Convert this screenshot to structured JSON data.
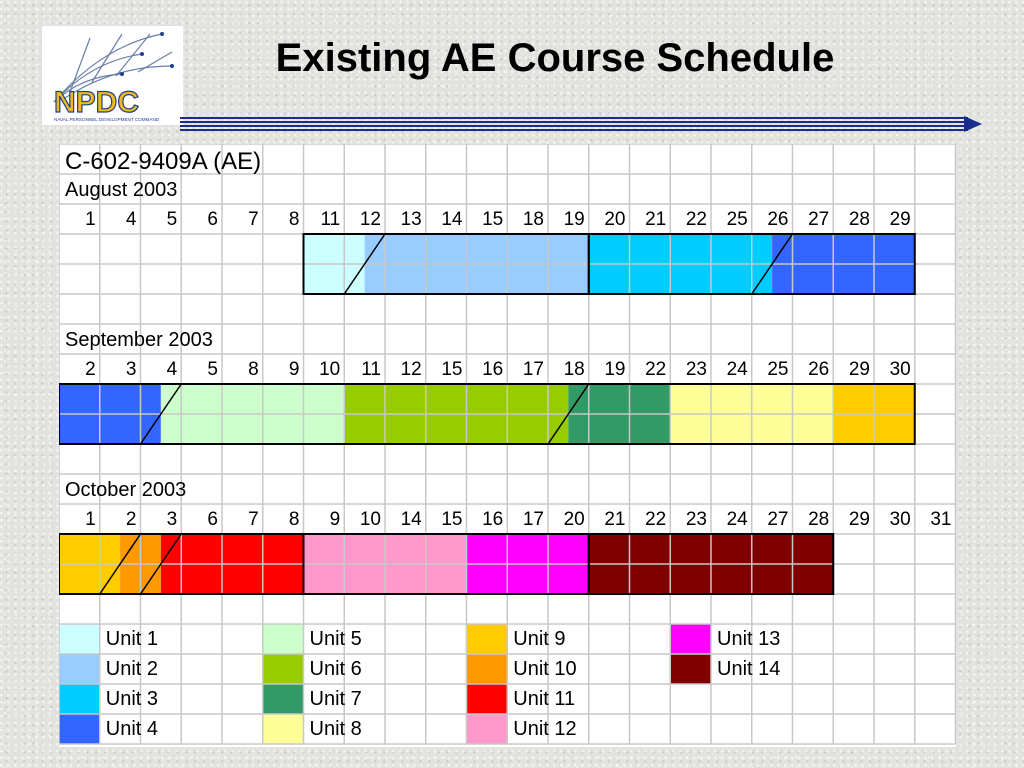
{
  "slide": {
    "title": "Existing AE Course Schedule"
  },
  "logo": {
    "text": "NPDC",
    "subtitle": "NAVAL PERSONNEL DEVELOPMENT COMMAND"
  },
  "schedule": {
    "course_code": "C-602-9409A (AE)",
    "months": [
      {
        "name": "August 2003",
        "days": [
          "1",
          "4",
          "5",
          "6",
          "7",
          "8",
          "11",
          "12",
          "13",
          "14",
          "15",
          "18",
          "19",
          "20",
          "21",
          "22",
          "25",
          "26",
          "27",
          "28",
          "29"
        ],
        "segments": [
          {
            "unit": "Unit 1",
            "start": 6,
            "end": 7.5
          },
          {
            "unit": "Unit 2",
            "start": 7.5,
            "end": 13
          },
          {
            "unit": "Unit 3",
            "start": 13,
            "end": 17.5
          },
          {
            "unit": "Unit 4",
            "start": 17.5,
            "end": 21
          }
        ],
        "boxes": [
          [
            6,
            13
          ],
          [
            13,
            21
          ]
        ]
      },
      {
        "name": "September 2003",
        "days": [
          "2",
          "3",
          "4",
          "5",
          "8",
          "9",
          "10",
          "11",
          "12",
          "15",
          "16",
          "17",
          "18",
          "19",
          "22",
          "23",
          "24",
          "25",
          "26",
          "29",
          "30"
        ],
        "segments": [
          {
            "unit": "Unit 4",
            "start": 0,
            "end": 2.5
          },
          {
            "unit": "Unit 5",
            "start": 2.5,
            "end": 7
          },
          {
            "unit": "Unit 6",
            "start": 7,
            "end": 12.5
          },
          {
            "unit": "Unit 7",
            "start": 12.5,
            "end": 15
          },
          {
            "unit": "Unit 8",
            "start": 15,
            "end": 19
          },
          {
            "unit": "Unit 9",
            "start": 19,
            "end": 21
          }
        ],
        "boxes": [
          [
            0,
            21
          ]
        ]
      },
      {
        "name": "October 2003",
        "days": [
          "1",
          "2",
          "3",
          "6",
          "7",
          "8",
          "9",
          "10",
          "14",
          "15",
          "16",
          "17",
          "20",
          "21",
          "22",
          "23",
          "24",
          "27",
          "28",
          "29",
          "30",
          "31"
        ],
        "segments": [
          {
            "unit": "Unit 9",
            "start": 0,
            "end": 1.5
          },
          {
            "unit": "Unit 10",
            "start": 1.5,
            "end": 2.5
          },
          {
            "unit": "Unit 11",
            "start": 2.5,
            "end": 6
          },
          {
            "unit": "Unit 12",
            "start": 6,
            "end": 10
          },
          {
            "unit": "Unit 13",
            "start": 10,
            "end": 13
          },
          {
            "unit": "Unit 14",
            "start": 13,
            "end": 19
          }
        ],
        "boxes": [
          [
            0,
            6
          ],
          [
            6,
            13
          ],
          [
            13,
            19
          ]
        ]
      }
    ],
    "legend": [
      {
        "label": "Unit 1",
        "color": "#ccffff"
      },
      {
        "label": "Unit 2",
        "color": "#99ccff"
      },
      {
        "label": "Unit 3",
        "color": "#00ccff"
      },
      {
        "label": "Unit 4",
        "color": "#3366ff"
      },
      {
        "label": "Unit 5",
        "color": "#ccffcc"
      },
      {
        "label": "Unit 6",
        "color": "#99cc00"
      },
      {
        "label": "Unit 7",
        "color": "#339966"
      },
      {
        "label": "Unit 8",
        "color": "#ffff99"
      },
      {
        "label": "Unit 9",
        "color": "#ffcc00"
      },
      {
        "label": "Unit 10",
        "color": "#ff9900"
      },
      {
        "label": "Unit 11",
        "color": "#ff0000"
      },
      {
        "label": "Unit 12",
        "color": "#ff99cc"
      },
      {
        "label": "Unit 13",
        "color": "#ff00ff"
      },
      {
        "label": "Unit 14",
        "color": "#800000"
      }
    ]
  }
}
